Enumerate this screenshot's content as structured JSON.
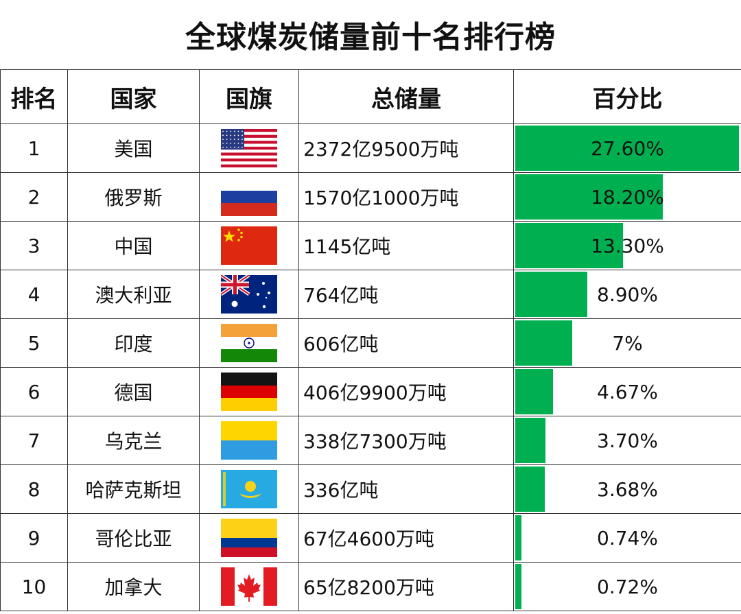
{
  "title": "全球煤炭储量前十名排行榜",
  "chart_data": {
    "type": "table",
    "columns": [
      "排名",
      "国家",
      "国旗",
      "总储量",
      "百分比"
    ],
    "bar_color": "#00b050",
    "rows": [
      {
        "rank": "1",
        "country": "美国",
        "flag": "usa",
        "total": "2372亿9500万吨",
        "percent_label": "27.60%",
        "percent": 27.6
      },
      {
        "rank": "2",
        "country": "俄罗斯",
        "flag": "russia",
        "total": "1570亿1000万吨",
        "percent_label": "18.20%",
        "percent": 18.2
      },
      {
        "rank": "3",
        "country": "中国",
        "flag": "china",
        "total": "1145亿吨",
        "percent_label": "13.30%",
        "percent": 13.3
      },
      {
        "rank": "4",
        "country": "澳大利亚",
        "flag": "australia",
        "total": "764亿吨",
        "percent_label": "8.90%",
        "percent": 8.9
      },
      {
        "rank": "5",
        "country": "印度",
        "flag": "india",
        "total": "606亿吨",
        "percent_label": "7%",
        "percent": 7
      },
      {
        "rank": "6",
        "country": "德国",
        "flag": "germany",
        "total": "406亿9900万吨",
        "percent_label": "4.67%",
        "percent": 4.67
      },
      {
        "rank": "7",
        "country": "乌克兰",
        "flag": "ukraine",
        "total": "338亿7300万吨",
        "percent_label": "3.70%",
        "percent": 3.7
      },
      {
        "rank": "8",
        "country": "哈萨克斯坦",
        "flag": "kazakhstan",
        "total": "336亿吨",
        "percent_label": "3.68%",
        "percent": 3.68
      },
      {
        "rank": "9",
        "country": "哥伦比亚",
        "flag": "colombia",
        "total": "67亿4600万吨",
        "percent_label": "0.74%",
        "percent": 0.74
      },
      {
        "rank": "10",
        "country": "加拿大",
        "flag": "canada",
        "total": "65亿8200万吨",
        "percent_label": "0.72%",
        "percent": 0.72
      }
    ]
  }
}
